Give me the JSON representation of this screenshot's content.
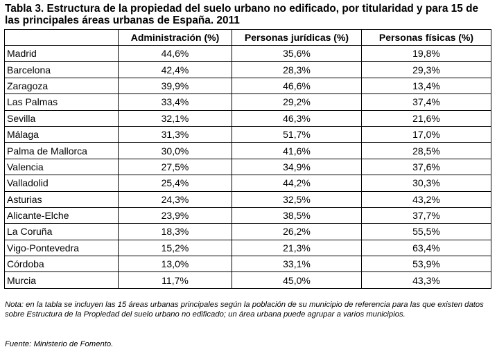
{
  "title": "Tabla 3. Estructura de la propiedad del suelo urbano no edificado, por titularidad y para 15 de las principales áreas urbanas de España. 2011",
  "table": {
    "headers": [
      "",
      "Administración (%)",
      "Personas jurídicas (%)",
      "Personas físicas (%)"
    ],
    "rows": [
      [
        "Madrid",
        "44,6%",
        "35,6%",
        "19,8%"
      ],
      [
        "Barcelona",
        "42,4%",
        "28,3%",
        "29,3%"
      ],
      [
        "Zaragoza",
        "39,9%",
        "46,6%",
        "13,4%"
      ],
      [
        "Las Palmas",
        "33,4%",
        "29,2%",
        "37,4%"
      ],
      [
        "Sevilla",
        "32,1%",
        "46,3%",
        "21,6%"
      ],
      [
        "Málaga",
        "31,3%",
        "51,7%",
        "17,0%"
      ],
      [
        "Palma de Mallorca",
        "30,0%",
        "41,6%",
        "28,5%"
      ],
      [
        "Valencia",
        "27,5%",
        "34,9%",
        "37,6%"
      ],
      [
        "Valladolid",
        "25,4%",
        "44,2%",
        "30,3%"
      ],
      [
        "Asturias",
        "24,3%",
        "32,5%",
        "43,2%"
      ],
      [
        "Alicante-Elche",
        "23,9%",
        "38,5%",
        "37,7%"
      ],
      [
        "La Coruña",
        "18,3%",
        "26,2%",
        "55,5%"
      ],
      [
        "Vigo-Pontevedra",
        "15,2%",
        "21,3%",
        "63,4%"
      ],
      [
        "Córdoba",
        "13,0%",
        "33,1%",
        "53,9%"
      ],
      [
        "Murcia",
        "11,7%",
        "45,0%",
        "43,3%"
      ]
    ]
  },
  "note": "Nota: en la tabla se incluyen las 15 áreas urbanas principales según la población de su municipio de referencia para las que existen datos sobre Estructura de la Propiedad del suelo urbano no edificado; un área urbana puede agrupar a varios municipios.",
  "source": "Fuente: Ministerio de Fomento."
}
